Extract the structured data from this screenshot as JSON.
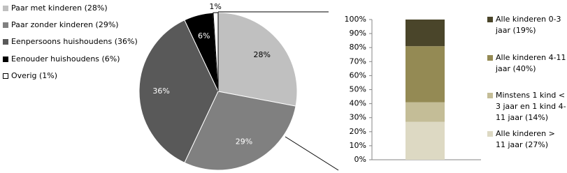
{
  "chart_data": [
    {
      "type": "pie",
      "categories": [
        "Paar met kinderen (28%)",
        "Paar zonder kinderen  (29%)",
        "Eenpersoons huishoudens (36%)",
        "Eenouder huishoudens (6%)",
        "Overig (1%)"
      ],
      "values": [
        28,
        29,
        36,
        6,
        1
      ],
      "value_labels": [
        "28%",
        "29%",
        "36%",
        "6%",
        "1%"
      ],
      "colors": [
        "#c0c0c0",
        "#808080",
        "#595959",
        "#000000",
        "#ffffff"
      ],
      "legend": "left"
    },
    {
      "type": "bar",
      "stacked": true,
      "categories": [
        null
      ],
      "series": [
        {
          "name": "Alle kinderen > 11 jaar (27%)",
          "color": "#ddd9c3",
          "values": [
            27
          ]
        },
        {
          "name": "Minstens 1 kind < 3 jaar en 1 kind 4-11 jaar (14%)",
          "color": "#c4bd97",
          "values": [
            14
          ]
        },
        {
          "name": "Alle kinderen 4-11 jaar (40%)",
          "color": "#948a54",
          "values": [
            40
          ]
        },
        {
          "name": "Alle kinderen 0-3 jaar (19%)",
          "color": "#4a452a",
          "values": [
            19
          ]
        }
      ],
      "ylim": [
        0,
        100
      ],
      "yticks": [
        {
          "value": 0,
          "label": "0%"
        },
        {
          "value": 10,
          "label": "10%"
        },
        {
          "value": 20,
          "label": "20%"
        },
        {
          "value": 30,
          "label": "30%"
        },
        {
          "value": 40,
          "label": "40%"
        },
        {
          "value": 50,
          "label": "50%"
        },
        {
          "value": 60,
          "label": "60%"
        },
        {
          "value": 70,
          "label": "70%"
        },
        {
          "value": 80,
          "label": "80%"
        },
        {
          "value": 90,
          "label": "90%"
        },
        {
          "value": 100,
          "label": "100%"
        }
      ],
      "legend": "right"
    }
  ]
}
